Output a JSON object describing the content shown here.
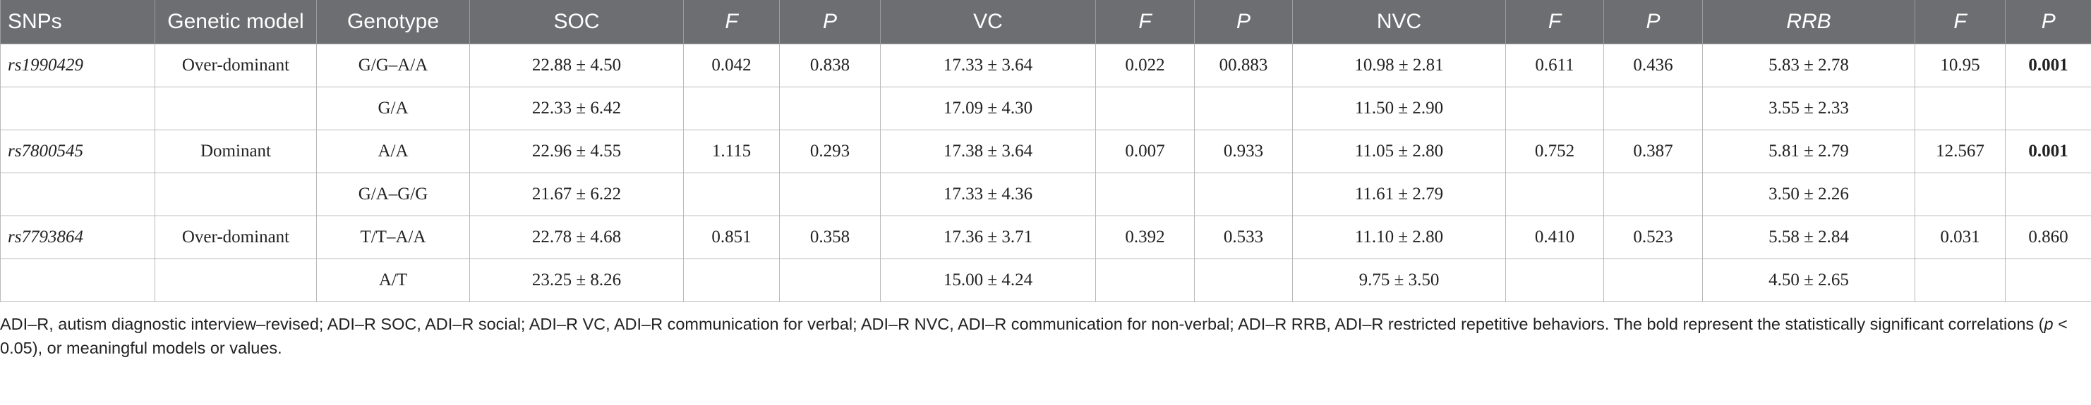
{
  "table": {
    "header": [
      "SNPs",
      "Genetic model",
      "Genotype",
      "SOC",
      "F",
      "P",
      "VC",
      "F",
      "P",
      "NVC",
      "F",
      "P",
      "RRB",
      "F",
      "P"
    ],
    "rows": [
      [
        "rs1990429",
        "Over-dominant",
        "G/G–A/A",
        "22.88 ± 4.50",
        "0.042",
        "0.838",
        "17.33 ± 3.64",
        "0.022",
        "00.883",
        "10.98 ± 2.81",
        "0.611",
        "0.436",
        "5.83 ± 2.78",
        "10.95",
        "0.001"
      ],
      [
        null,
        null,
        "G/A",
        "22.33 ± 6.42",
        null,
        null,
        "17.09 ± 4.30",
        null,
        null,
        "11.50 ± 2.90",
        null,
        null,
        "3.55 ± 2.33",
        null,
        null
      ],
      [
        "rs7800545",
        "Dominant",
        "A/A",
        "22.96 ± 4.55",
        "1.115",
        "0.293",
        "17.38 ± 3.64",
        "0.007",
        "0.933",
        "11.05 ± 2.80",
        "0.752",
        "0.387",
        "5.81 ± 2.79",
        "12.567",
        "0.001"
      ],
      [
        null,
        null,
        "G/A–G/G",
        "21.67 ± 6.22",
        null,
        null,
        "17.33 ± 4.36",
        null,
        null,
        "11.61 ± 2.79",
        null,
        null,
        "3.50 ± 2.26",
        null,
        null
      ],
      [
        "rs7793864",
        "Over-dominant",
        "T/T–A/A",
        "22.78 ± 4.68",
        "0.851",
        "0.358",
        "17.36 ± 3.71",
        "0.392",
        "0.533",
        "11.10 ± 2.80",
        "0.410",
        "0.523",
        "5.58 ± 2.84",
        "0.031",
        "0.860"
      ],
      [
        null,
        null,
        "A/T",
        "23.25 ± 8.26",
        null,
        null,
        "15.00 ± 4.24",
        null,
        null,
        "9.75 ± 3.50",
        null,
        null,
        "4.50 ± 2.65",
        null,
        null
      ]
    ]
  },
  "footnote": [
    "ADI–R, autism diagnostic interview–revised; ADI–R SOC, ADI–R social; ADI–R VC, ADI–R communication for verbal; ADI–R NVC, ADI–R communication for non-verbal; ADI–R RRB, ADI–R restricted repetitive behaviors. The bold represent the statistically significant correlations (",
    "p",
    " < 0.05), or meaningful models or values."
  ]
}
